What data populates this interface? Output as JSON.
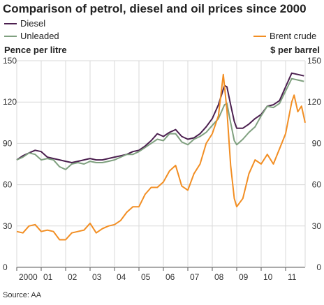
{
  "title": "Comparison of petrol, diesel and oil prices since 2000",
  "legend": {
    "diesel": "Diesel",
    "unleaded": "Unleaded",
    "brent": "Brent crude"
  },
  "left_axis_label": "Pence per litre",
  "right_axis_label": "$ per barrel",
  "source": "Source: AA",
  "colors": {
    "diesel": "#4b1f4f",
    "unleaded": "#7fa07f",
    "brent": "#f28e23",
    "grid": "#d9d9d9",
    "axis": "#555555"
  },
  "chart_data": {
    "type": "line",
    "title": "Comparison of petrol, diesel and oil prices since 2000",
    "x_tick_labels": [
      "2000",
      "01",
      "02",
      "03",
      "04",
      "05",
      "06",
      "07",
      "08",
      "09",
      "10",
      "11"
    ],
    "x_ticks": [
      2000,
      2001,
      2002,
      2003,
      2004,
      2005,
      2006,
      2007,
      2008,
      2009,
      2010,
      2011
    ],
    "xlim": [
      2000,
      2011.8
    ],
    "left_axis": {
      "label": "Pence per litre",
      "ylim": [
        0,
        150
      ],
      "ticks": [
        0,
        30,
        60,
        90,
        120,
        150
      ]
    },
    "right_axis": {
      "label": "$ per barrel",
      "ylim": [
        0,
        150
      ],
      "ticks": [
        0,
        30,
        60,
        90,
        120,
        150
      ]
    },
    "grid": true,
    "series": [
      {
        "name": "Diesel",
        "axis": "left",
        "color": "#4b1f4f",
        "points": [
          [
            2000.0,
            78
          ],
          [
            2000.25,
            81
          ],
          [
            2000.5,
            83
          ],
          [
            2000.75,
            85
          ],
          [
            2001.0,
            84
          ],
          [
            2001.25,
            80
          ],
          [
            2001.5,
            79
          ],
          [
            2001.75,
            78
          ],
          [
            2002.0,
            77
          ],
          [
            2002.25,
            76
          ],
          [
            2002.5,
            77
          ],
          [
            2002.75,
            78
          ],
          [
            2003.0,
            79
          ],
          [
            2003.25,
            78
          ],
          [
            2003.5,
            78
          ],
          [
            2003.75,
            79
          ],
          [
            2004.0,
            80
          ],
          [
            2004.25,
            81
          ],
          [
            2004.5,
            82
          ],
          [
            2004.75,
            84
          ],
          [
            2005.0,
            85
          ],
          [
            2005.25,
            88
          ],
          [
            2005.5,
            92
          ],
          [
            2005.75,
            97
          ],
          [
            2006.0,
            95
          ],
          [
            2006.25,
            98
          ],
          [
            2006.5,
            100
          ],
          [
            2006.75,
            95
          ],
          [
            2007.0,
            93
          ],
          [
            2007.25,
            94
          ],
          [
            2007.5,
            97
          ],
          [
            2007.75,
            102
          ],
          [
            2008.0,
            108
          ],
          [
            2008.25,
            118
          ],
          [
            2008.5,
            132
          ],
          [
            2008.6,
            131
          ],
          [
            2008.75,
            118
          ],
          [
            2008.9,
            106
          ],
          [
            2009.0,
            101
          ],
          [
            2009.25,
            101
          ],
          [
            2009.5,
            104
          ],
          [
            2009.75,
            108
          ],
          [
            2010.0,
            111
          ],
          [
            2010.25,
            117
          ],
          [
            2010.5,
            118
          ],
          [
            2010.75,
            121
          ],
          [
            2011.0,
            131
          ],
          [
            2011.25,
            141
          ],
          [
            2011.5,
            140
          ],
          [
            2011.75,
            139
          ]
        ]
      },
      {
        "name": "Unleaded",
        "axis": "left",
        "color": "#7fa07f",
        "points": [
          [
            2000.0,
            78
          ],
          [
            2000.25,
            80
          ],
          [
            2000.5,
            83
          ],
          [
            2000.75,
            82
          ],
          [
            2001.0,
            78
          ],
          [
            2001.25,
            79
          ],
          [
            2001.5,
            78
          ],
          [
            2001.75,
            73
          ],
          [
            2002.0,
            71
          ],
          [
            2002.25,
            75
          ],
          [
            2002.5,
            76
          ],
          [
            2002.75,
            75
          ],
          [
            2003.0,
            77
          ],
          [
            2003.25,
            76
          ],
          [
            2003.5,
            76
          ],
          [
            2003.75,
            77
          ],
          [
            2004.0,
            78
          ],
          [
            2004.25,
            80
          ],
          [
            2004.5,
            82
          ],
          [
            2004.75,
            82
          ],
          [
            2005.0,
            84
          ],
          [
            2005.25,
            87
          ],
          [
            2005.5,
            90
          ],
          [
            2005.75,
            93
          ],
          [
            2006.0,
            92
          ],
          [
            2006.25,
            97
          ],
          [
            2006.5,
            97
          ],
          [
            2006.75,
            91
          ],
          [
            2007.0,
            89
          ],
          [
            2007.25,
            93
          ],
          [
            2007.5,
            95
          ],
          [
            2007.75,
            98
          ],
          [
            2008.0,
            103
          ],
          [
            2008.25,
            108
          ],
          [
            2008.5,
            118
          ],
          [
            2008.6,
            119
          ],
          [
            2008.75,
            105
          ],
          [
            2008.9,
            92
          ],
          [
            2009.0,
            89
          ],
          [
            2009.25,
            93
          ],
          [
            2009.5,
            98
          ],
          [
            2009.75,
            102
          ],
          [
            2010.0,
            110
          ],
          [
            2010.25,
            117
          ],
          [
            2010.5,
            116
          ],
          [
            2010.75,
            119
          ],
          [
            2011.0,
            128
          ],
          [
            2011.25,
            137
          ],
          [
            2011.5,
            136
          ],
          [
            2011.75,
            135
          ]
        ]
      },
      {
        "name": "Brent crude",
        "axis": "right",
        "color": "#f28e23",
        "points": [
          [
            2000.0,
            26
          ],
          [
            2000.25,
            25
          ],
          [
            2000.5,
            30
          ],
          [
            2000.75,
            31
          ],
          [
            2001.0,
            26
          ],
          [
            2001.25,
            27
          ],
          [
            2001.5,
            26
          ],
          [
            2001.75,
            20
          ],
          [
            2002.0,
            20
          ],
          [
            2002.25,
            25
          ],
          [
            2002.5,
            26
          ],
          [
            2002.75,
            27
          ],
          [
            2003.0,
            32
          ],
          [
            2003.25,
            25
          ],
          [
            2003.5,
            28
          ],
          [
            2003.75,
            30
          ],
          [
            2004.0,
            31
          ],
          [
            2004.25,
            34
          ],
          [
            2004.5,
            40
          ],
          [
            2004.75,
            44
          ],
          [
            2005.0,
            44
          ],
          [
            2005.25,
            53
          ],
          [
            2005.5,
            58
          ],
          [
            2005.75,
            58
          ],
          [
            2006.0,
            62
          ],
          [
            2006.25,
            70
          ],
          [
            2006.5,
            74
          ],
          [
            2006.75,
            59
          ],
          [
            2007.0,
            56
          ],
          [
            2007.25,
            68
          ],
          [
            2007.5,
            75
          ],
          [
            2007.75,
            90
          ],
          [
            2008.0,
            97
          ],
          [
            2008.25,
            110
          ],
          [
            2008.45,
            140
          ],
          [
            2008.6,
            114
          ],
          [
            2008.75,
            74
          ],
          [
            2008.9,
            50
          ],
          [
            2009.0,
            44
          ],
          [
            2009.25,
            50
          ],
          [
            2009.5,
            68
          ],
          [
            2009.75,
            78
          ],
          [
            2010.0,
            75
          ],
          [
            2010.25,
            82
          ],
          [
            2010.5,
            75
          ],
          [
            2010.75,
            86
          ],
          [
            2011.0,
            97
          ],
          [
            2011.25,
            120
          ],
          [
            2011.35,
            125
          ],
          [
            2011.5,
            113
          ],
          [
            2011.65,
            117
          ],
          [
            2011.8,
            105
          ]
        ]
      }
    ]
  }
}
